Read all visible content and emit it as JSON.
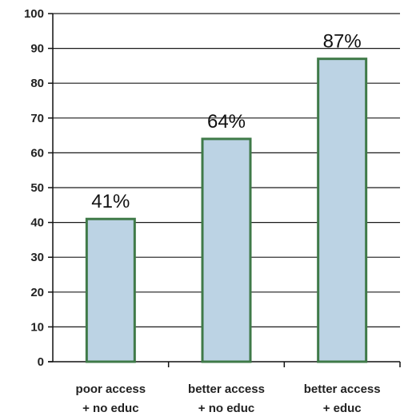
{
  "colors": {
    "bar_fill": "#bcd3e4",
    "bar_stroke": "#3f7a48",
    "grid": "#1a1a1a",
    "axis": "#111111"
  },
  "chart_data": {
    "type": "bar",
    "title": "",
    "xlabel": "",
    "ylabel": "",
    "ylim": [
      0,
      100
    ],
    "yticks": [
      0,
      10,
      20,
      30,
      40,
      50,
      60,
      70,
      80,
      90,
      100
    ],
    "grid": true,
    "categories": [
      {
        "line1": "poor access",
        "line2": "+ no educ"
      },
      {
        "line1": "better access",
        "line2": "+ no educ"
      },
      {
        "line1": "better access",
        "line2": "+ educ"
      }
    ],
    "values": [
      41,
      64,
      87
    ],
    "data_labels": [
      "41%",
      "64%",
      "87%"
    ]
  }
}
